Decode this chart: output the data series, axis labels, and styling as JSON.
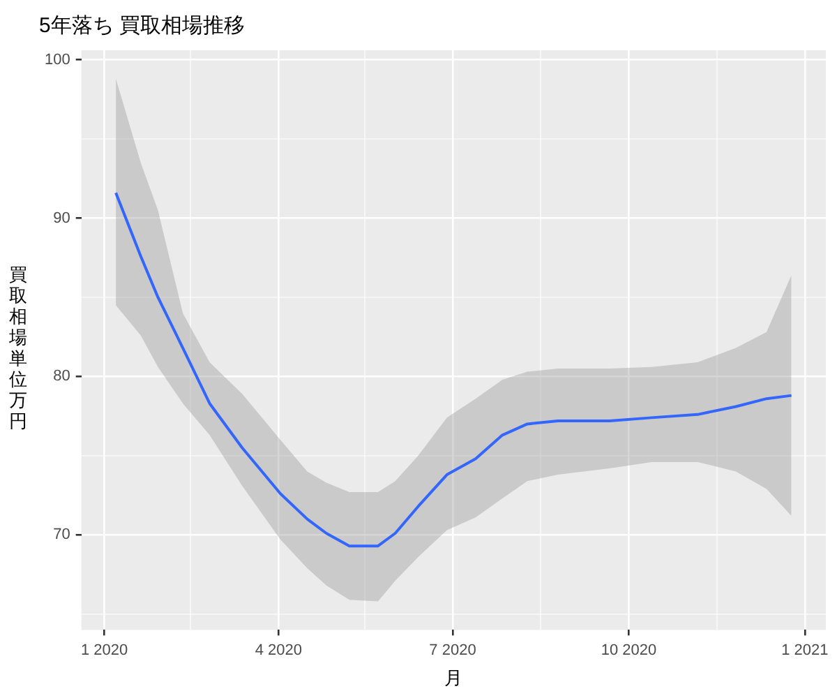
{
  "chart_data": {
    "type": "line",
    "title": "5年落ち 買取相場推移",
    "xlabel": "月",
    "ylabel": "買取相場単位万円",
    "x": [
      "2020-01-07",
      "2020-01-20",
      "2020-01-29",
      "2020-02-11",
      "2020-02-25",
      "2020-03-13",
      "2020-04-02",
      "2020-04-16",
      "2020-04-26",
      "2020-05-08",
      "2020-05-23",
      "2020-06-01",
      "2020-06-13",
      "2020-06-28",
      "2020-07-13",
      "2020-07-27",
      "2020-08-09",
      "2020-08-25",
      "2020-09-21",
      "2020-10-13",
      "2020-11-06",
      "2020-11-26",
      "2020-12-12",
      "2020-12-25"
    ],
    "series": [
      {
        "color": "#3366ff",
        "values": [
          91.6,
          87.6,
          85.0,
          81.8,
          78.3,
          75.5,
          72.6,
          71.0,
          70.1,
          69.3,
          69.3,
          70.1,
          71.8,
          73.8,
          74.8,
          76.3,
          77.0,
          77.2,
          77.2,
          77.4,
          77.6,
          78.1,
          78.6,
          78.8
        ],
        "lower": [
          84.5,
          82.6,
          80.6,
          78.3,
          76.3,
          73.1,
          69.7,
          67.9,
          66.8,
          65.9,
          65.8,
          67.1,
          68.6,
          70.3,
          71.1,
          72.3,
          73.4,
          73.8,
          74.2,
          74.6,
          74.6,
          74.0,
          72.9,
          71.2
        ],
        "upper": [
          98.8,
          93.5,
          90.5,
          84.0,
          80.9,
          78.9,
          76.0,
          74.0,
          73.3,
          72.7,
          72.7,
          73.4,
          75.0,
          77.4,
          78.6,
          79.8,
          80.3,
          80.5,
          80.5,
          80.6,
          80.9,
          81.8,
          82.8,
          86.4
        ]
      }
    ],
    "xlim": [
      "2019-12-20",
      "2021-01-12"
    ],
    "xticks": [
      {
        "value": "2020-01-01",
        "label": "1 2020"
      },
      {
        "value": "2020-02-15",
        "label": null
      },
      {
        "value": "2020-04-01",
        "label": "4 2020"
      },
      {
        "value": "2020-05-16",
        "label": null
      },
      {
        "value": "2020-07-01",
        "label": "7 2020"
      },
      {
        "value": "2020-08-16",
        "label": null
      },
      {
        "value": "2020-10-01",
        "label": "10 2020"
      },
      {
        "value": "2020-11-16",
        "label": null
      },
      {
        "value": "2021-01-01",
        "label": "1 2021"
      }
    ],
    "ylim": [
      64,
      100.6
    ],
    "yticks": [
      {
        "value": 65,
        "label": null
      },
      70,
      {
        "value": 75,
        "label": null
      },
      80,
      {
        "value": 85,
        "label": null
      },
      90,
      {
        "value": 95,
        "label": null
      },
      100
    ],
    "grid": true,
    "marker": "none",
    "line_style": "solid"
  }
}
